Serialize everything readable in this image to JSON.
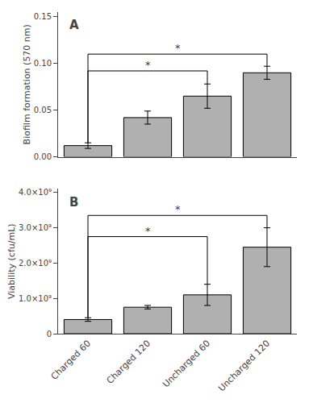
{
  "chart_data": [
    {
      "type": "bar",
      "categories": [
        "Charged 60",
        "Charged 120",
        "Uncharged 60",
        "Uncharged 120"
      ],
      "values": [
        0.012,
        0.042,
        0.065,
        0.09
      ],
      "errors": [
        0.003,
        0.007,
        0.013,
        0.007
      ],
      "color": "#b0b0b0",
      "ylabel": "Biofilm formation (570 nm)",
      "ylim": [
        0,
        0.155
      ],
      "yticks": [
        {
          "value": 0,
          "label": "0.00"
        },
        {
          "value": 0.05,
          "label": "0.05"
        },
        {
          "value": 0.1,
          "label": "0.10"
        },
        {
          "value": 0.15,
          "label": "0.15"
        }
      ],
      "grid": false,
      "tick_labels": "y",
      "annotations": [
        {
          "text": "A"
        },
        {
          "text": "*",
          "from": "Charged 60",
          "to": "Uncharged 60",
          "y": 0.092
        },
        {
          "text": "*",
          "from": "Charged 60",
          "to": "Uncharged 120",
          "y": 0.11
        }
      ]
    },
    {
      "type": "bar",
      "categories": [
        "Charged 60",
        "Charged 120",
        "Uncharged 60",
        "Uncharged 120"
      ],
      "values": [
        400000000.0,
        750000000.0,
        1100000000.0,
        2450000000.0
      ],
      "errors": [
        50000000.0,
        50000000.0,
        300000000.0,
        550000000.0
      ],
      "color": "#b0b0b0",
      "ylabel": "Viability (cfu/mL)",
      "ylim": [
        0,
        4100000000.0
      ],
      "yticks": [
        0,
        {
          "value": 1000000000.0,
          "label": "1.0×10⁹"
        },
        {
          "value": 2000000000.0,
          "label": "2.0×10⁹"
        },
        {
          "value": 3000000000.0,
          "label": "3.0×10⁹"
        },
        {
          "value": 4000000000.0,
          "label": "4.0×10⁹"
        }
      ],
      "grid": false,
      "annotations": [
        {
          "text": "B"
        },
        {
          "text": "*",
          "from": "Charged 60",
          "to": "Uncharged 60",
          "y": 2750000000.0
        },
        {
          "text": "*",
          "from": "Charged 60",
          "to": "Uncharged 120",
          "y": 3350000000.0
        }
      ]
    }
  ]
}
